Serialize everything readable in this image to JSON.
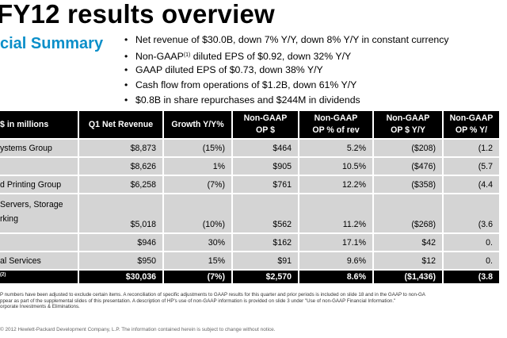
{
  "title": "FY12 results overview",
  "subtitle": "cial Summary",
  "bullets": [
    "Net revenue of $30.0B, down 7% Y/Y, down 8% Y/Y in constant currency",
    {
      "pre": "Non-GAAP",
      "sup": "(1)",
      "post": " diluted EPS of $0.92, down 32% Y/Y"
    },
    "GAAP diluted EPS of $0.73, down 38% Y/Y",
    "Cash flow from operations of $1.2B, down 61% Y/Y",
    "$0.8B in share repurchases and $244M in dividends"
  ],
  "table": {
    "headers": {
      "segment": "$ in millions",
      "revenue": "Q1 Net Revenue",
      "growth": "Growth Y/Y%",
      "op": [
        "Non-GAAP",
        "OP $"
      ],
      "op_pct": [
        "Non-GAAP",
        "OP % of rev"
      ],
      "op_yy": [
        "Non-GAAP",
        "OP $ Y/Y"
      ],
      "op_pct_yy": [
        "Non-GAAP",
        "OP % Y/"
      ]
    },
    "rows": [
      {
        "segment": "ystems Group",
        "revenue": "$8,873",
        "growth": "(15%)",
        "op": "$464",
        "op_pct": "5.2%",
        "op_yy": "($208)",
        "op_pct_yy": "(1.2"
      },
      {
        "segment": "",
        "revenue": "$8,626",
        "growth": "1%",
        "op": "$905",
        "op_pct": "10.5%",
        "op_yy": "($476)",
        "op_pct_yy": "(5.7"
      },
      {
        "segment": "d Printing Group",
        "revenue": "$6,258",
        "growth": "(7%)",
        "op": "$761",
        "op_pct": "12.2%",
        "op_yy": "($358)",
        "op_pct_yy": "(4.4"
      },
      {
        "segment_line1": "Servers, Storage",
        "segment_line2": "rking",
        "revenue": "$5,018",
        "growth": "(10%)",
        "op": "$562",
        "op_pct": "11.2%",
        "op_yy": "($268)",
        "op_pct_yy": "(3.6"
      },
      {
        "segment": "",
        "revenue": "$946",
        "growth": "30%",
        "op": "$162",
        "op_pct": "17.1%",
        "op_yy": "$42",
        "op_pct_yy": "0."
      },
      {
        "segment": "al Services",
        "revenue": "$950",
        "growth": "15%",
        "op": "$91",
        "op_pct": "9.6%",
        "op_yy": "$12",
        "op_pct_yy": "0."
      }
    ],
    "total": {
      "segment_sup": "(2)",
      "revenue": "$30,036",
      "growth": "(7%)",
      "op": "$2,570",
      "op_pct": "8.6%",
      "op_yy": "($1,436)",
      "op_pct_yy": "(3.8"
    }
  },
  "footnotes": [
    "P numbers have been adjusted to exclude certain items. A reconciliation of specific adjustments to GAAP results for this quarter and prior periods is included on slide 18 and in the GAAP to non-GA",
    "ppear as part of the supplemental slides of this presentation. A description of HP's use of non-GAAP information is provided on slide 3 under \"Use of non-GAAP Financial Information.\"",
    "orporate Investments & Eliminations."
  ],
  "copyright": "2012 Hewlett-Packard Development Company, L.P. The information contained herein is subject to change without notice."
}
